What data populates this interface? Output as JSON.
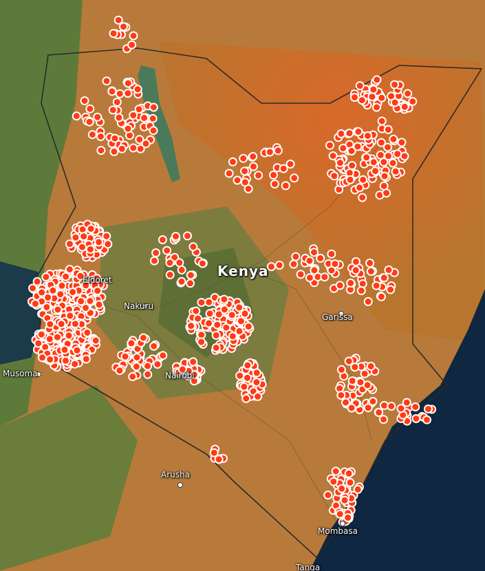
{
  "map": {
    "country_label": "Kenya",
    "cities": [
      {
        "name": "Musoma"
      },
      {
        "name": "Nakuru"
      },
      {
        "name": "Nairobi"
      },
      {
        "name": "Garissa"
      },
      {
        "name": "Arusha"
      },
      {
        "name": "Mombasa"
      },
      {
        "name": "Eldoret"
      },
      {
        "name": "Tanga"
      }
    ],
    "marker_color": "#ff3b14",
    "marker_stroke": "#ffffff",
    "ocean_color": "#0f2740",
    "lake_color": "#1b3a4a"
  }
}
